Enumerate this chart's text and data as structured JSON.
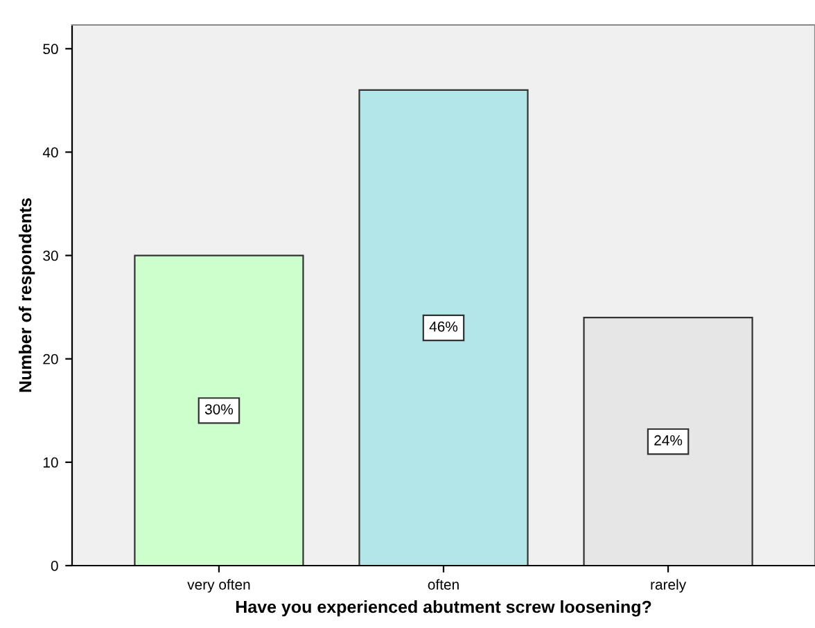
{
  "chart_data": {
    "type": "bar",
    "xlabel": "Have you experienced abutment screw loosening?",
    "ylabel": "Number of respondents",
    "categories": [
      "very often",
      "often",
      "rarely"
    ],
    "values": [
      30,
      46,
      24
    ],
    "colors": [
      "#ccffcc",
      "#b3e6e8",
      "#e6e6e6"
    ],
    "value_labels": [
      "30%",
      "46%",
      "24%"
    ],
    "ylim": [
      0,
      52.3
    ],
    "yticks": [
      0,
      10,
      20,
      30,
      40,
      50
    ],
    "grid": false,
    "legend": false
  }
}
